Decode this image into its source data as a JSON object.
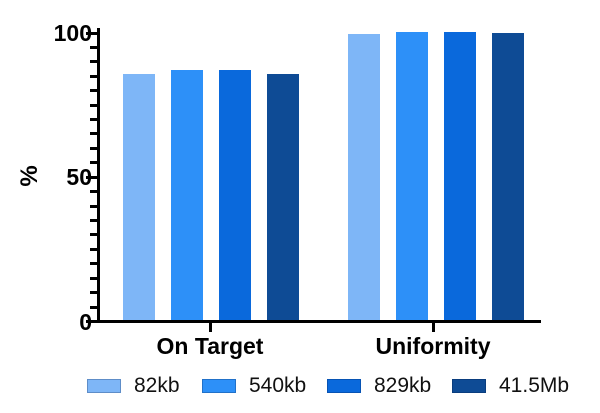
{
  "chart_data": {
    "type": "bar",
    "title": "",
    "ylabel": "%",
    "xlabel": "",
    "categories": [
      "On Target",
      "Uniformity"
    ],
    "series": [
      {
        "name": "82kb",
        "color": "#7EB6F7",
        "values": [
          85.3,
          99.1
        ]
      },
      {
        "name": "540kb",
        "color": "#2D90F8",
        "values": [
          86.6,
          99.9
        ]
      },
      {
        "name": "829kb",
        "color": "#0A69DC",
        "values": [
          86.8,
          100
        ]
      },
      {
        "name": "41.5Mb",
        "color": "#0E4B95",
        "values": [
          85.2,
          99.4
        ]
      }
    ],
    "ylim": [
      0,
      100
    ],
    "y_ticks": [
      0,
      50,
      100
    ],
    "y_minor_tick_step": 5,
    "grid": "off",
    "legend_position": "bottom",
    "axis_color": "#000000",
    "background": "#FFFFFF"
  }
}
